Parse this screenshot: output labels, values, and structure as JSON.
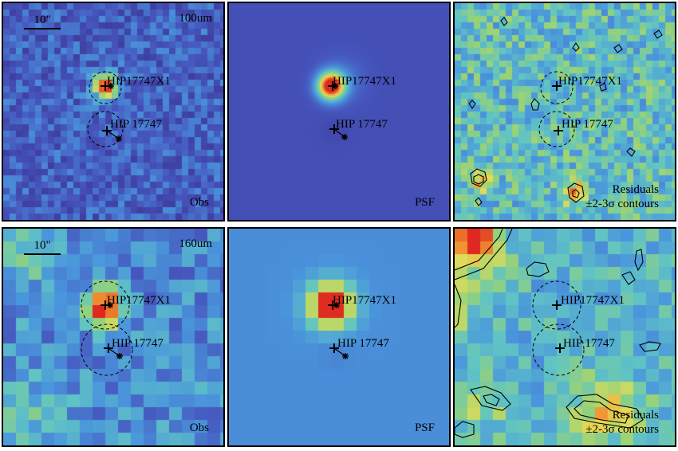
{
  "panels": [
    {
      "id": "100-obs",
      "band": "100um",
      "type": "Obs",
      "scale_label": "10\"",
      "sources": [
        "HIP17747X1",
        "HIP 17747"
      ]
    },
    {
      "id": "100-psf",
      "band": "",
      "type": "PSF",
      "scale_label": "",
      "sources": [
        "HIP17747X1",
        "HIP 17747"
      ]
    },
    {
      "id": "100-res",
      "band": "",
      "type": "Residuals",
      "subtype": "±2-3σ contours",
      "scale_label": "",
      "sources": [
        "HIP17747X1",
        "HIP 17747"
      ]
    },
    {
      "id": "160-obs",
      "band": "160um",
      "type": "Obs",
      "scale_label": "10\"",
      "sources": [
        "HIP17747X1",
        "HIP 17747"
      ]
    },
    {
      "id": "160-psf",
      "band": "",
      "type": "PSF",
      "scale_label": "",
      "sources": [
        "HIP17747X1",
        "HIP 17747"
      ]
    },
    {
      "id": "160-res",
      "band": "",
      "type": "Residuals",
      "subtype": "±2-3σ contours",
      "scale_label": "",
      "sources": [
        "HIP17747X1",
        "HIP 17747"
      ]
    }
  ],
  "colors": {
    "background_dark": "#3a4aa0",
    "background_mid": "#4f9ad8",
    "hot": "#e03020",
    "warm": "#f0a030",
    "cool": "#69c4b0",
    "contour": "#000000"
  },
  "icons": [
    "plus-marker-icon",
    "asterisk-marker-icon",
    "dashed-circle-aperture-icon"
  ]
}
